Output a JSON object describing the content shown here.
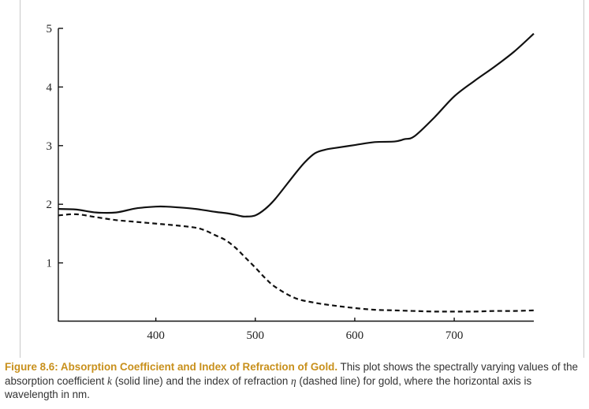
{
  "chart_data": {
    "type": "line",
    "xlim": [
      302,
      780
    ],
    "ylim": [
      0,
      5
    ],
    "x_ticks": [
      "400",
      "500",
      "600",
      "700"
    ],
    "y_ticks": [
      "1",
      "2",
      "3",
      "4",
      "5"
    ],
    "grid": false,
    "series": [
      {
        "style": "solid",
        "x": [
          302,
          320,
          340,
          360,
          380,
          400,
          410,
          420,
          440,
          460,
          470,
          480,
          485,
          490,
          500,
          510,
          520,
          540,
          550,
          560,
          570,
          580,
          600,
          620,
          640,
          650,
          660,
          680,
          700,
          720,
          740,
          760,
          780
        ],
        "y": [
          1.92,
          1.91,
          1.86,
          1.86,
          1.93,
          1.96,
          1.96,
          1.95,
          1.92,
          1.87,
          1.85,
          1.82,
          1.8,
          1.79,
          1.81,
          1.92,
          2.09,
          2.52,
          2.72,
          2.87,
          2.93,
          2.96,
          3.01,
          3.06,
          3.07,
          3.11,
          3.16,
          3.48,
          3.84,
          4.1,
          4.34,
          4.6,
          4.91
        ]
      },
      {
        "style": "dashed",
        "x": [
          302,
          320,
          340,
          360,
          380,
          400,
          420,
          440,
          450,
          460,
          470,
          480,
          490,
          500,
          510,
          520,
          540,
          560,
          580,
          600,
          620,
          640,
          660,
          680,
          700,
          720,
          740,
          760,
          780
        ],
        "y": [
          1.81,
          1.83,
          1.78,
          1.73,
          1.7,
          1.67,
          1.64,
          1.6,
          1.55,
          1.47,
          1.39,
          1.26,
          1.09,
          0.92,
          0.74,
          0.59,
          0.4,
          0.32,
          0.27,
          0.23,
          0.2,
          0.19,
          0.18,
          0.17,
          0.17,
          0.17,
          0.18,
          0.18,
          0.19
        ]
      }
    ]
  },
  "caption": {
    "title": "Figure 8.6: Absorption Coefficient and Index of Refraction of Gold.",
    "text_1": " This plot shows the spectrally varying values of the absorption coefficient ",
    "k_symbol": "k",
    "text_2": " (solid line) and the index of refraction ",
    "eta_symbol": "η",
    "text_3": " (dashed line) for gold, where the horizontal axis is wavelength in nm."
  }
}
